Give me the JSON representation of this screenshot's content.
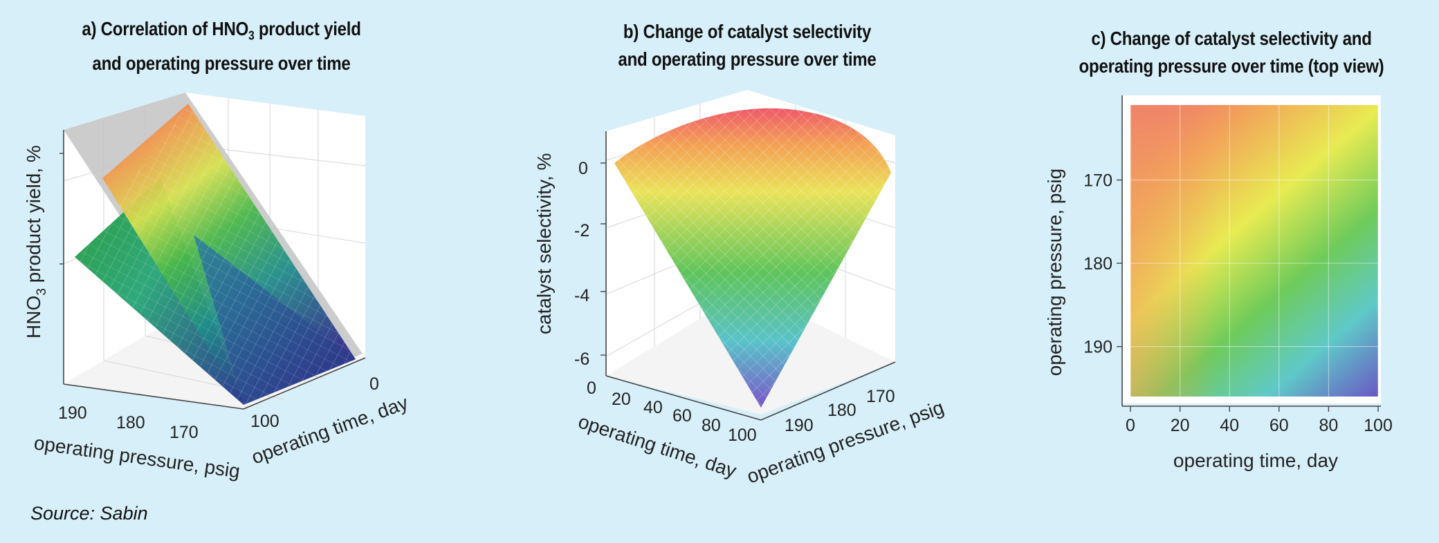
{
  "panels": {
    "a": {
      "title_pre": "a) Correlation of HNO",
      "title_sub": "3",
      "title_post": " product yield",
      "title_line2": "and operating pressure over time"
    },
    "b": {
      "title_line1": "b) Change of catalyst selectivity",
      "title_line2": "and operating pressure over time"
    },
    "c": {
      "title_line1": "c) Change of catalyst selectivity and",
      "title_line2": "operating pressure over time (top view)"
    }
  },
  "source": "Source: Sabin",
  "chart_data": [
    {
      "type": "surface3d",
      "title": "a) Correlation of HNO3 product yield and operating pressure over time",
      "zlabel_pre": "HNO",
      "zlabel_sub": "3",
      "zlabel_post": " product yield, %",
      "xlabel": "operating pressure, psig",
      "ylabel": "operating time, day",
      "x_ticks": [
        "190",
        "180",
        "170"
      ],
      "y_ticks": [
        "100",
        "0"
      ],
      "xlim": [
        165,
        195
      ],
      "ylim": [
        0,
        100
      ],
      "colormap": "viridis",
      "colors": {
        "high": "#e14a55",
        "mid": "#49b849",
        "low": "#2e2f8a",
        "plane": "#b9b9b9"
      }
    },
    {
      "type": "surface3d",
      "title": "b) Change of catalyst selectivity and operating pressure over time",
      "zlabel": "catalyst selectivity, %",
      "xlabel": "operating time, day",
      "ylabel": "operating pressure, psig",
      "x_ticks": [
        "0",
        "20",
        "40",
        "60",
        "80",
        "100"
      ],
      "y_ticks": [
        "190",
        "180",
        "170"
      ],
      "z_ticks": [
        "0",
        "-2",
        "-4",
        "-6"
      ],
      "zlim": [
        -6.8,
        0.8
      ],
      "colormap": "spectral",
      "colors": {
        "high": "#ee5a6a",
        "mid": "#5fc45c",
        "low": "#7a55c8"
      }
    },
    {
      "type": "heatmap",
      "title": "c) Change of catalyst selectivity and operating pressure over time (top view)",
      "xlabel": "operating time, day",
      "ylabel": "operating pressure, psig",
      "x_ticks": [
        0,
        20,
        40,
        60,
        80,
        100
      ],
      "y_ticks": [
        170,
        180,
        190
      ],
      "xlim": [
        0,
        100
      ],
      "ylim": [
        161,
        196
      ],
      "y_inverted": true,
      "colormap": "spectral",
      "colors": {
        "high": "#ee6772",
        "mid": "#e8eb52",
        "low": "#6a52c4"
      },
      "grid": true
    }
  ]
}
